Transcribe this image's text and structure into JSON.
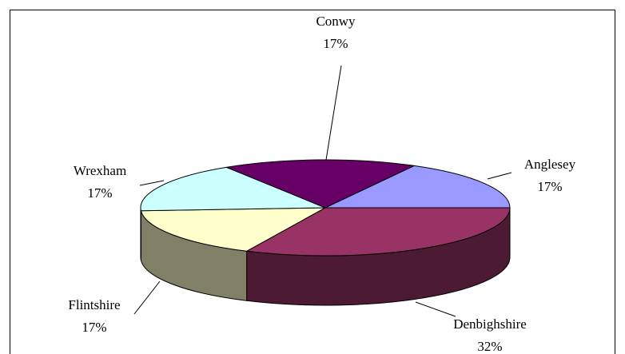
{
  "chart_data": {
    "type": "pie3d",
    "categories": [
      "Denbighshire",
      "Flintshire",
      "Wrexham",
      "Conwy",
      "Anglesey"
    ],
    "values": [
      32,
      17,
      17,
      17,
      17
    ],
    "value_labels": [
      "32%",
      "17%",
      "17%",
      "17%",
      "17%"
    ],
    "colors": [
      "#993366",
      "#ffffcc",
      "#ccffff",
      "#660066",
      "#9999ff"
    ]
  }
}
